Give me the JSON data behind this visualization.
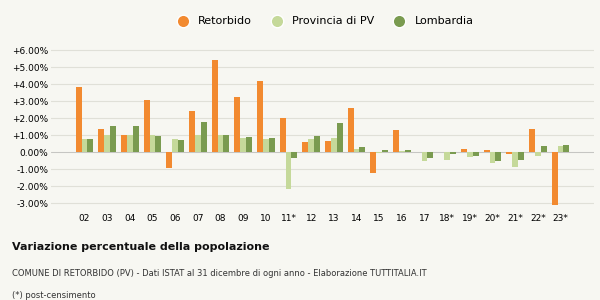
{
  "categories": [
    "02",
    "03",
    "04",
    "05",
    "06",
    "07",
    "08",
    "09",
    "10",
    "11*",
    "12",
    "13",
    "14",
    "15",
    "16",
    "17",
    "18*",
    "19*",
    "20*",
    "21*",
    "22*",
    "23*"
  ],
  "retorbido": [
    3.85,
    1.35,
    1.0,
    3.05,
    -0.95,
    2.45,
    5.45,
    3.25,
    4.2,
    2.0,
    0.6,
    0.65,
    2.6,
    -1.25,
    1.3,
    0.0,
    0.0,
    0.2,
    0.15,
    -0.1,
    1.35,
    -3.1
  ],
  "provincia": [
    0.8,
    1.0,
    1.0,
    1.0,
    0.8,
    1.0,
    1.0,
    0.85,
    0.75,
    -2.15,
    0.75,
    0.85,
    0.2,
    -0.05,
    0.05,
    -0.5,
    -0.45,
    -0.3,
    -0.65,
    -0.85,
    -0.2,
    0.35
  ],
  "lombardia": [
    0.75,
    1.55,
    1.55,
    0.95,
    0.7,
    1.8,
    1.0,
    0.9,
    0.85,
    -0.35,
    0.95,
    1.7,
    0.3,
    0.1,
    0.1,
    -0.35,
    -0.1,
    -0.2,
    -0.55,
    -0.45,
    0.35,
    0.4
  ],
  "color_retorbido": "#f28a30",
  "color_provincia": "#c5d99a",
  "color_lombardia": "#7a9b50",
  "title": "Variazione percentuale della popolazione",
  "subtitle": "COMUNE DI RETORBIDO (PV) - Dati ISTAT al 31 dicembre di ogni anno - Elaborazione TUTTITALIA.IT",
  "footnote": "(*) post-censimento",
  "ylim": [
    -3.5,
    6.5
  ],
  "yticks": [
    -3.0,
    -2.0,
    -1.0,
    0.0,
    1.0,
    2.0,
    3.0,
    4.0,
    5.0,
    6.0
  ],
  "ytick_labels": [
    "-3.00%",
    "-2.00%",
    "-1.00%",
    "0.00%",
    "+1.00%",
    "+2.00%",
    "+3.00%",
    "+4.00%",
    "+5.00%",
    "+6.00%"
  ],
  "bg_color": "#f7f7f2",
  "grid_color": "#e0e0d8",
  "legend_labels": [
    "Retorbido",
    "Provincia di PV",
    "Lombardia"
  ]
}
